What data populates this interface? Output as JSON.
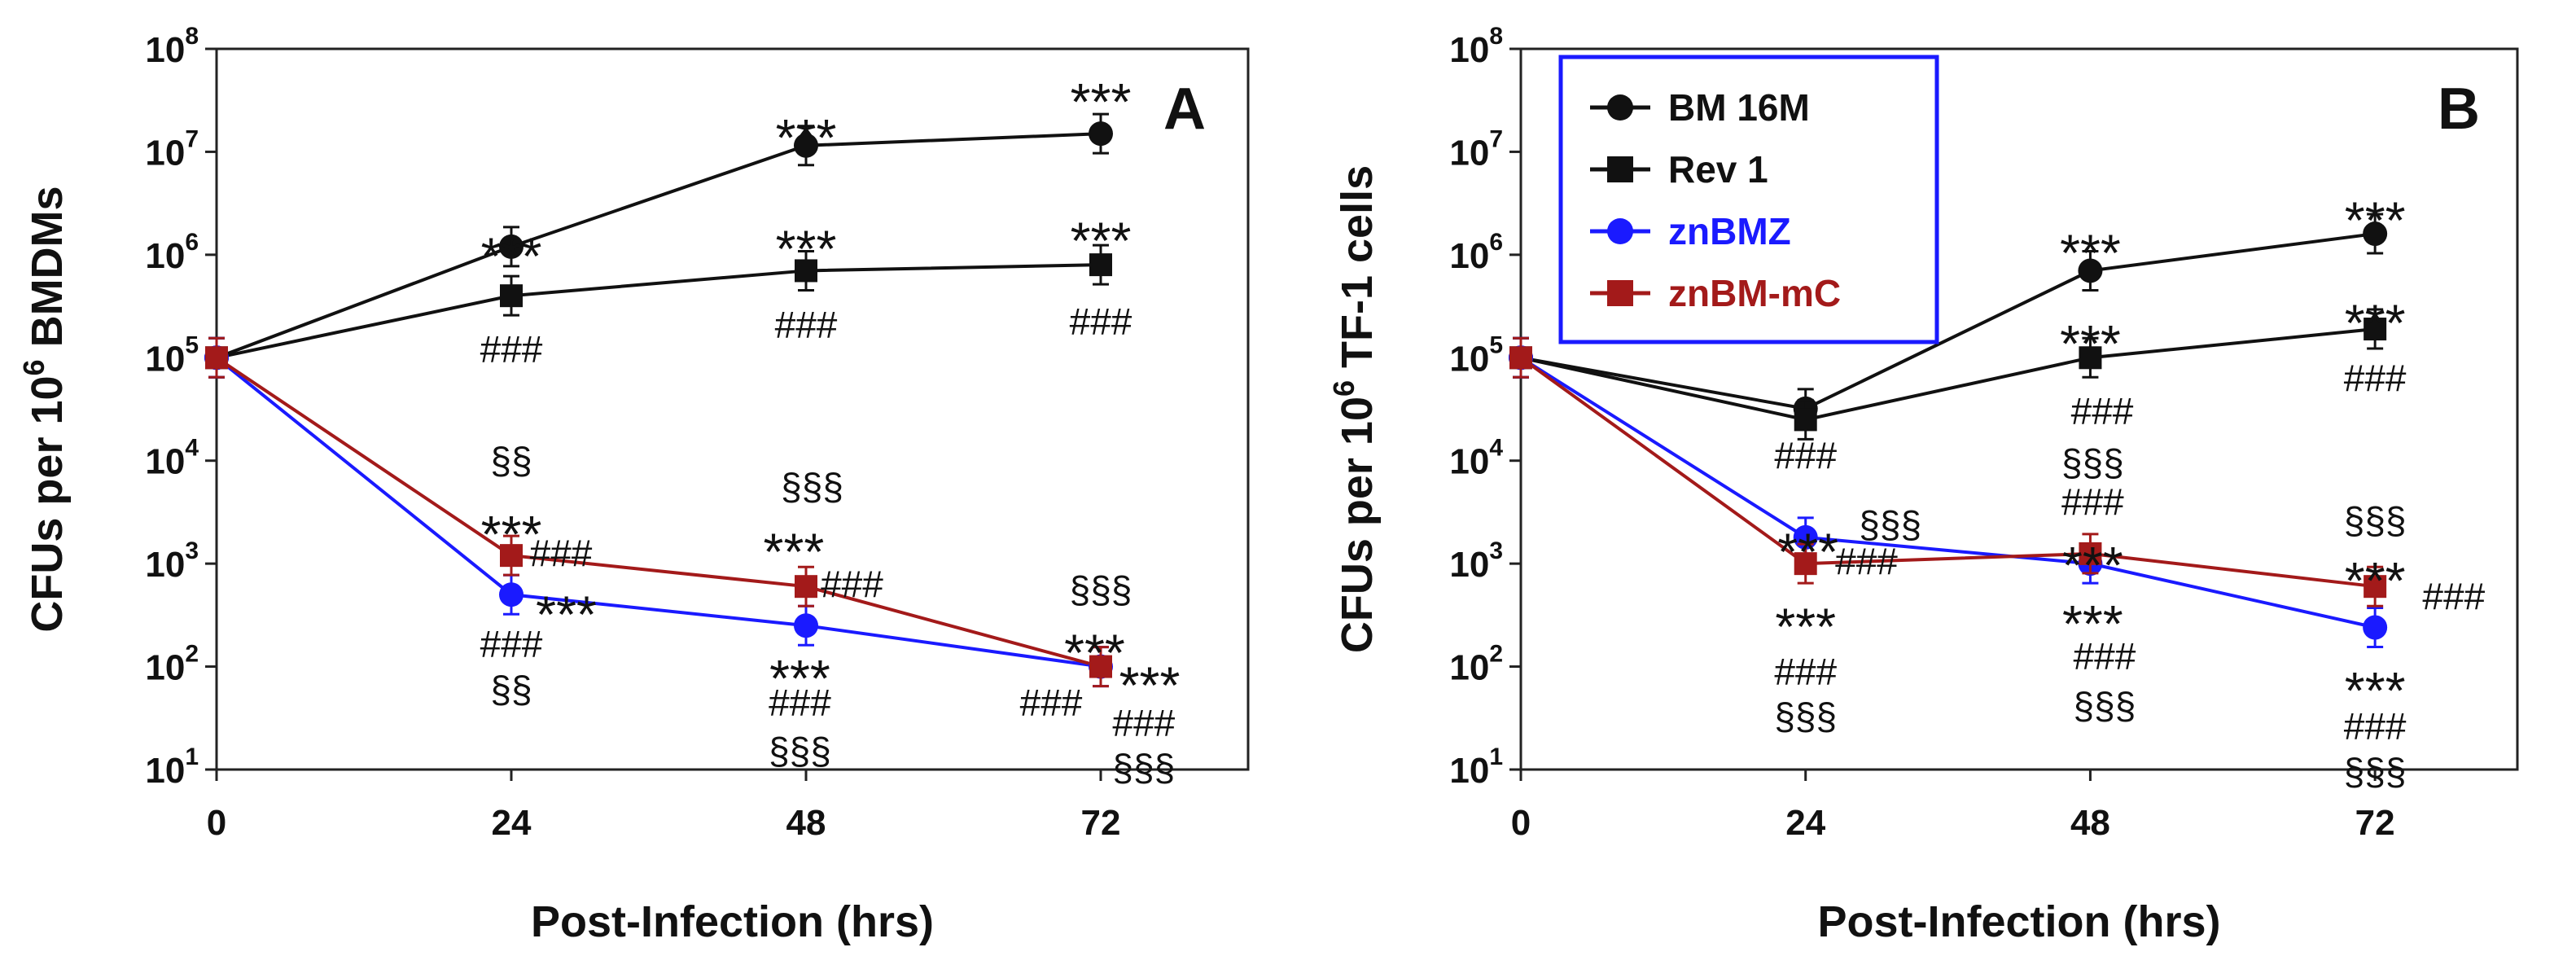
{
  "chart_data": [
    {
      "panel": "A",
      "type": "line",
      "yscale": "log",
      "xlabel": "Post-Infection (hrs)",
      "ylabel_main": "CFUs per 10",
      "ylabel_sup": "6",
      "ylabel_tail": " BMDMs",
      "x_ticks": [
        "0",
        "24",
        "48",
        "72"
      ],
      "y_ticks": [
        {
          "base": "10",
          "exp": "1"
        },
        {
          "base": "10",
          "exp": "2"
        },
        {
          "base": "10",
          "exp": "3"
        },
        {
          "base": "10",
          "exp": "4"
        },
        {
          "base": "10",
          "exp": "5"
        },
        {
          "base": "10",
          "exp": "6"
        },
        {
          "base": "10",
          "exp": "7"
        },
        {
          "base": "10",
          "exp": "8"
        }
      ],
      "xlim": [
        0,
        84
      ],
      "ylim_log10": [
        1,
        8
      ],
      "series": [
        {
          "name": "BM 16M",
          "color": "#111111",
          "marker": "circle",
          "x": [
            0,
            24,
            48,
            72
          ],
          "values": [
            100000,
            1200000,
            11500000,
            15000000
          ]
        },
        {
          "name": "Rev 1",
          "color": "#111111",
          "marker": "square",
          "x": [
            0,
            24,
            48,
            72
          ],
          "values": [
            100000,
            400000,
            700000,
            800000
          ]
        },
        {
          "name": "znBMZ",
          "color": "#1a1aff",
          "marker": "circle",
          "x": [
            0,
            24,
            48,
            72
          ],
          "values": [
            100000,
            500,
            250,
            100
          ]
        },
        {
          "name": "znBM-mC",
          "color": "#a31a1a",
          "marker": "square",
          "x": [
            0,
            24,
            48,
            72
          ],
          "values": [
            100000,
            1200,
            600,
            100
          ]
        }
      ],
      "annotations": [
        {
          "text": "***",
          "x": 24,
          "y_log": 6.05,
          "anchor": "middle",
          "kind": "star"
        },
        {
          "text": "###",
          "x": 24,
          "y_log": 5.08,
          "anchor": "middle",
          "kind": "sig"
        },
        {
          "text": "§§",
          "x": 24,
          "y_log": 4.0,
          "anchor": "middle",
          "kind": "sig"
        },
        {
          "text": "***",
          "x": 24,
          "y_log": 3.35,
          "anchor": "middle",
          "kind": "star"
        },
        {
          "text": "###",
          "x": 25.5,
          "y_log": 3.1,
          "anchor": "start",
          "kind": "sig"
        },
        {
          "text": "***",
          "x": 26,
          "y_log": 2.57,
          "anchor": "start",
          "kind": "star"
        },
        {
          "text": "###",
          "x": 24,
          "y_log": 2.22,
          "anchor": "middle",
          "kind": "sig"
        },
        {
          "text": "§§",
          "x": 24,
          "y_log": 1.78,
          "anchor": "middle",
          "kind": "sig"
        },
        {
          "text": "***",
          "x": 48,
          "y_log": 7.2,
          "anchor": "middle",
          "kind": "star"
        },
        {
          "text": "***",
          "x": 48,
          "y_log": 6.12,
          "anchor": "middle",
          "kind": "star"
        },
        {
          "text": "###",
          "x": 48,
          "y_log": 5.32,
          "anchor": "middle",
          "kind": "sig"
        },
        {
          "text": "§§§",
          "x": 48.5,
          "y_log": 3.75,
          "anchor": "middle",
          "kind": "sig"
        },
        {
          "text": "***",
          "x": 47,
          "y_log": 3.18,
          "anchor": "middle",
          "kind": "star"
        },
        {
          "text": "###",
          "x": 49.2,
          "y_log": 2.8,
          "anchor": "start",
          "kind": "sig"
        },
        {
          "text": "***",
          "x": 47.5,
          "y_log": 1.95,
          "anchor": "middle",
          "kind": "star"
        },
        {
          "text": "###",
          "x": 47.5,
          "y_log": 1.65,
          "anchor": "middle",
          "kind": "sig"
        },
        {
          "text": "§§§",
          "x": 47.5,
          "y_log": 1.18,
          "anchor": "middle",
          "kind": "sig"
        },
        {
          "text": "***",
          "x": 72,
          "y_log": 7.55,
          "anchor": "middle",
          "kind": "star"
        },
        {
          "text": "***",
          "x": 72,
          "y_log": 6.2,
          "anchor": "middle",
          "kind": "star"
        },
        {
          "text": "###",
          "x": 72,
          "y_log": 5.35,
          "anchor": "middle",
          "kind": "sig"
        },
        {
          "text": "§§§",
          "x": 72,
          "y_log": 2.75,
          "anchor": "middle",
          "kind": "sig"
        },
        {
          "text": "***",
          "x": 71.5,
          "y_log": 2.2,
          "anchor": "middle",
          "kind": "star"
        },
        {
          "text": "###",
          "x": 70.5,
          "y_log": 1.65,
          "anchor": "end",
          "kind": "sig"
        },
        {
          "text": "***",
          "x": 73.5,
          "y_log": 1.88,
          "anchor": "start",
          "kind": "star"
        },
        {
          "text": "###",
          "x": 75.5,
          "y_log": 1.45,
          "anchor": "middle",
          "kind": "sig"
        },
        {
          "text": "§§§",
          "x": 75.5,
          "y_log": 1.02,
          "anchor": "middle",
          "kind": "sig"
        }
      ]
    },
    {
      "panel": "B",
      "type": "line",
      "yscale": "log",
      "xlabel": "Post-Infection (hrs)",
      "ylabel_main": "CFUs per 10",
      "ylabel_sup": "6",
      "ylabel_tail": " TF-1 cells",
      "x_ticks": [
        "0",
        "24",
        "48",
        "72"
      ],
      "y_ticks": [
        {
          "base": "10",
          "exp": "1"
        },
        {
          "base": "10",
          "exp": "2"
        },
        {
          "base": "10",
          "exp": "3"
        },
        {
          "base": "10",
          "exp": "4"
        },
        {
          "base": "10",
          "exp": "5"
        },
        {
          "base": "10",
          "exp": "6"
        },
        {
          "base": "10",
          "exp": "7"
        },
        {
          "base": "10",
          "exp": "8"
        }
      ],
      "xlim": [
        0,
        84
      ],
      "ylim_log10": [
        1,
        8
      ],
      "legend": {
        "position": "top-left",
        "border_color": "#1a1aff",
        "entries": [
          {
            "label": "BM 16M",
            "color": "#111111",
            "text_color": "#111111",
            "marker": "circle"
          },
          {
            "label": "Rev 1",
            "color": "#111111",
            "text_color": "#111111",
            "marker": "square"
          },
          {
            "label": "znBMZ",
            "color": "#1a1aff",
            "text_color": "#1a1aff",
            "marker": "circle"
          },
          {
            "label": "znBM-mC",
            "color": "#a31a1a",
            "text_color": "#a31a1a",
            "marker": "square"
          }
        ]
      },
      "series": [
        {
          "name": "BM 16M",
          "color": "#111111",
          "marker": "circle",
          "x": [
            0,
            24,
            48,
            72
          ],
          "values": [
            100000,
            32000,
            700000,
            1600000
          ]
        },
        {
          "name": "Rev 1",
          "color": "#111111",
          "marker": "square",
          "x": [
            0,
            24,
            48,
            72
          ],
          "values": [
            100000,
            25000,
            100000,
            190000
          ]
        },
        {
          "name": "znBMZ",
          "color": "#1a1aff",
          "marker": "circle",
          "x": [
            0,
            24,
            48,
            72
          ],
          "values": [
            100000,
            1800,
            1000,
            240
          ]
        },
        {
          "name": "znBM-mC",
          "color": "#a31a1a",
          "marker": "square",
          "x": [
            0,
            24,
            48,
            72
          ],
          "values": [
            100000,
            1000,
            1250,
            600
          ]
        }
      ],
      "annotations": [
        {
          "text": "###",
          "x": 24,
          "y_log": 4.05,
          "anchor": "middle",
          "kind": "sig"
        },
        {
          "text": "***",
          "x": 24.2,
          "y_log": 3.18,
          "anchor": "middle",
          "kind": "star"
        },
        {
          "text": "§§§",
          "x": 28.5,
          "y_log": 3.38,
          "anchor": "start",
          "kind": "sig"
        },
        {
          "text": "###",
          "x": 26.5,
          "y_log": 3.02,
          "anchor": "start",
          "kind": "sig"
        },
        {
          "text": "***",
          "x": 24,
          "y_log": 2.45,
          "anchor": "middle",
          "kind": "star"
        },
        {
          "text": "###",
          "x": 24,
          "y_log": 1.95,
          "anchor": "middle",
          "kind": "sig"
        },
        {
          "text": "§§§",
          "x": 24,
          "y_log": 1.52,
          "anchor": "middle",
          "kind": "sig"
        },
        {
          "text": "***",
          "x": 48,
          "y_log": 6.08,
          "anchor": "middle",
          "kind": "star"
        },
        {
          "text": "***",
          "x": 48,
          "y_log": 5.2,
          "anchor": "middle",
          "kind": "star"
        },
        {
          "text": "###",
          "x": 49,
          "y_log": 4.48,
          "anchor": "middle",
          "kind": "sig"
        },
        {
          "text": "§§§",
          "x": 48.2,
          "y_log": 3.98,
          "anchor": "middle",
          "kind": "sig"
        },
        {
          "text": "###",
          "x": 48.2,
          "y_log": 3.6,
          "anchor": "middle",
          "kind": "sig"
        },
        {
          "text": "***",
          "x": 48.2,
          "y_log": 3.05,
          "anchor": "middle",
          "kind": "star"
        },
        {
          "text": "***",
          "x": 48.2,
          "y_log": 2.48,
          "anchor": "middle",
          "kind": "star"
        },
        {
          "text": "###",
          "x": 49.2,
          "y_log": 2.1,
          "anchor": "middle",
          "kind": "sig"
        },
        {
          "text": "§§§",
          "x": 49.2,
          "y_log": 1.62,
          "anchor": "middle",
          "kind": "sig"
        },
        {
          "text": "***",
          "x": 72,
          "y_log": 6.4,
          "anchor": "middle",
          "kind": "star"
        },
        {
          "text": "***",
          "x": 72,
          "y_log": 5.4,
          "anchor": "middle",
          "kind": "star"
        },
        {
          "text": "###",
          "x": 72,
          "y_log": 4.8,
          "anchor": "middle",
          "kind": "sig"
        },
        {
          "text": "§§§",
          "x": 72,
          "y_log": 3.42,
          "anchor": "middle",
          "kind": "sig"
        },
        {
          "text": "***",
          "x": 72,
          "y_log": 2.9,
          "anchor": "middle",
          "kind": "star"
        },
        {
          "text": "###",
          "x": 76,
          "y_log": 2.68,
          "anchor": "start",
          "kind": "sig"
        },
        {
          "text": "***",
          "x": 72,
          "y_log": 1.83,
          "anchor": "middle",
          "kind": "star"
        },
        {
          "text": "###",
          "x": 72,
          "y_log": 1.42,
          "anchor": "middle",
          "kind": "sig"
        },
        {
          "text": "§§§",
          "x": 72,
          "y_log": 0.98,
          "anchor": "middle",
          "kind": "sig"
        }
      ]
    }
  ]
}
